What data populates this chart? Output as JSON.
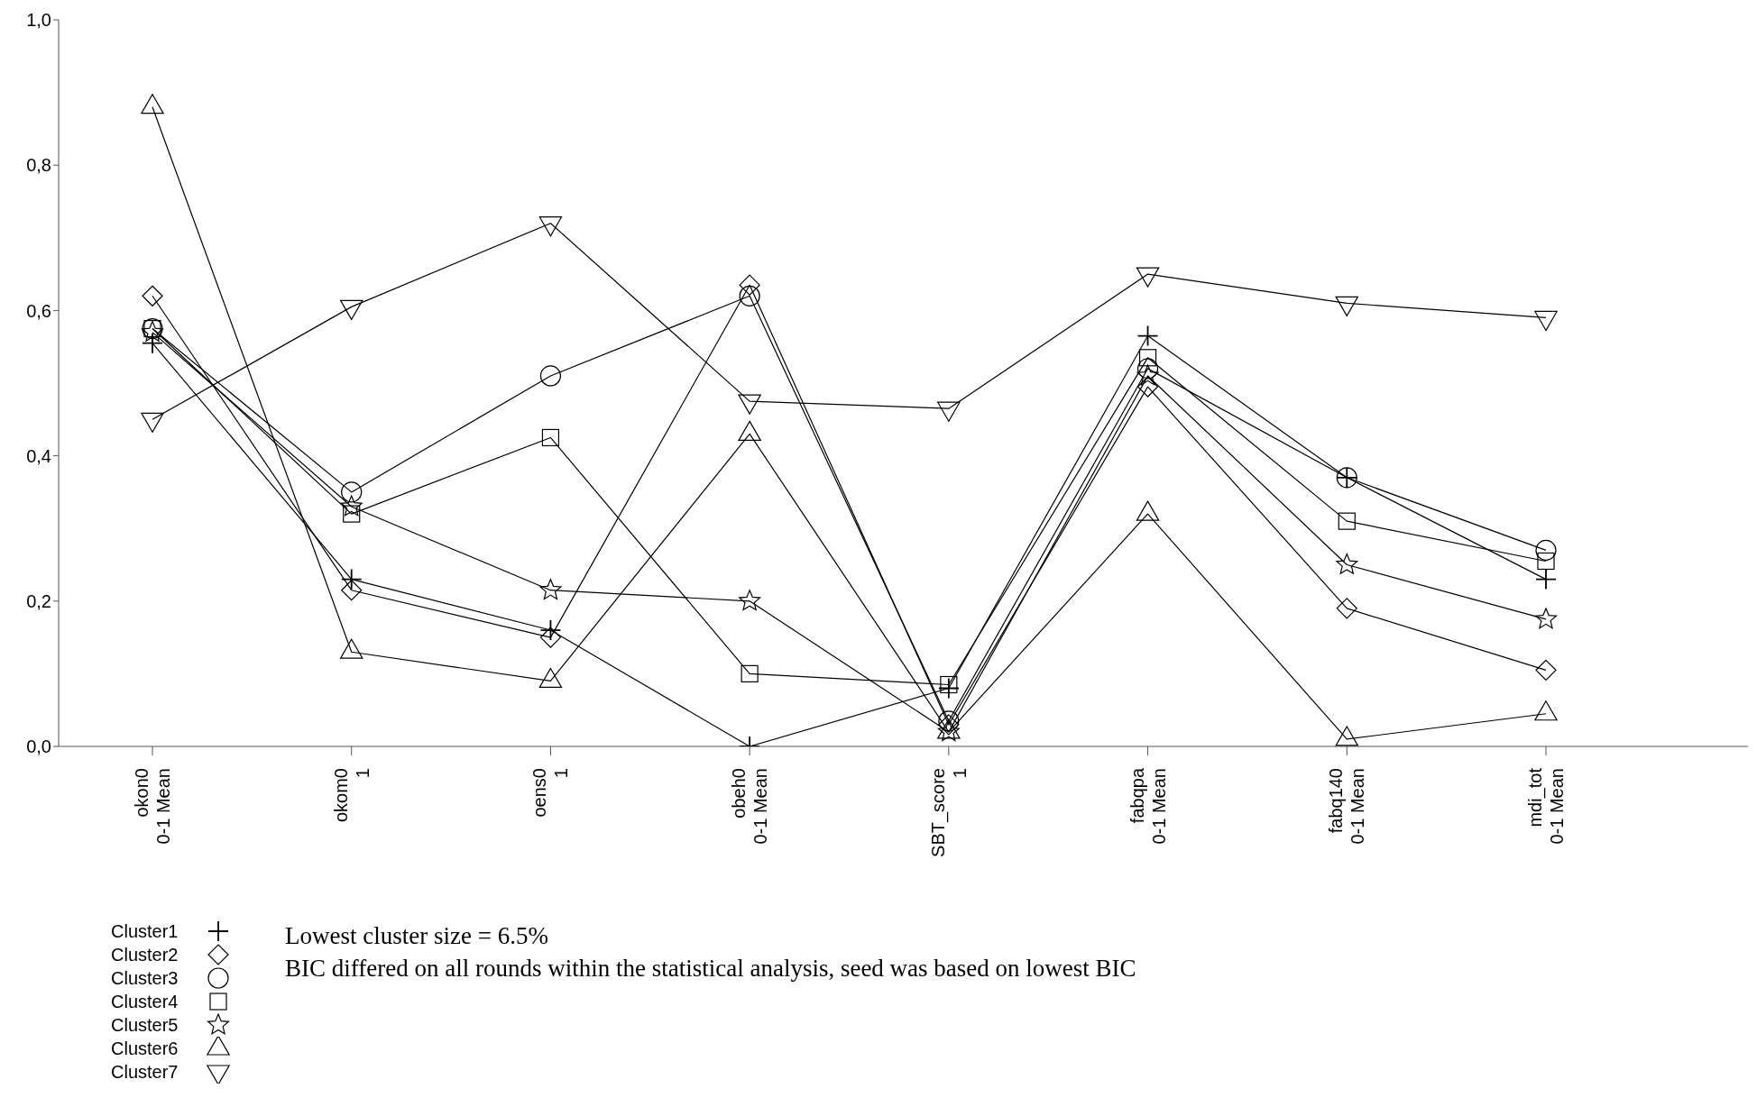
{
  "chart_data": {
    "type": "line",
    "categories": [
      "okon0\n0-1 Mean",
      "okom0\n1",
      "oens0\n1",
      "obeh0\n0-1 Mean",
      "SBT_score\n1",
      "fabqpa\n0-1 Mean",
      "fabq140\n0-1 Mean",
      "mdi_tot\n0-1 Mean"
    ],
    "series": [
      {
        "name": "Cluster1",
        "color": "#000000",
        "marker": "cross",
        "values": [
          0.555,
          0.23,
          0.16,
          0.0,
          0.08,
          0.565,
          0.37,
          0.23
        ]
      },
      {
        "name": "Cluster2",
        "color": "#000000",
        "marker": "diamond",
        "values": [
          0.62,
          0.215,
          0.15,
          0.635,
          0.03,
          0.495,
          0.19,
          0.105
        ]
      },
      {
        "name": "Cluster3",
        "color": "#000000",
        "marker": "circle",
        "values": [
          0.575,
          0.35,
          0.51,
          0.62,
          0.035,
          0.52,
          0.37,
          0.27
        ]
      },
      {
        "name": "Cluster4",
        "color": "#000000",
        "marker": "square",
        "values": [
          0.575,
          0.32,
          0.425,
          0.1,
          0.085,
          0.535,
          0.31,
          0.255
        ]
      },
      {
        "name": "Cluster5",
        "color": "#000000",
        "marker": "star",
        "values": [
          0.57,
          0.33,
          0.215,
          0.2,
          0.02,
          0.51,
          0.25,
          0.175
        ]
      },
      {
        "name": "Cluster6",
        "color": "#000000",
        "marker": "triangle",
        "values": [
          0.88,
          0.13,
          0.09,
          0.43,
          0.02,
          0.32,
          0.01,
          0.045
        ]
      },
      {
        "name": "Cluster7",
        "color": "#000000",
        "marker": "triangle-down",
        "values": [
          0.45,
          0.605,
          0.72,
          0.475,
          0.465,
          0.65,
          0.61,
          0.59
        ]
      }
    ],
    "ylim": [
      0,
      1
    ],
    "yticks": [
      {
        "value": 0,
        "label": "0,0"
      },
      {
        "value": 0.2,
        "label": "0,2"
      },
      {
        "value": 0.4,
        "label": "0,4"
      },
      {
        "value": 0.6,
        "label": "0,6"
      },
      {
        "value": 0.8,
        "label": "0,8"
      },
      {
        "value": 1,
        "label": "1,0"
      }
    ],
    "grid": false,
    "legend": "bottom left",
    "line_style": "solid",
    "annotations": [
      "Lowest cluster size = 6.5%",
      "BIC differed on all rounds within the statistical analysis, seed was based on lowest BIC"
    ]
  }
}
